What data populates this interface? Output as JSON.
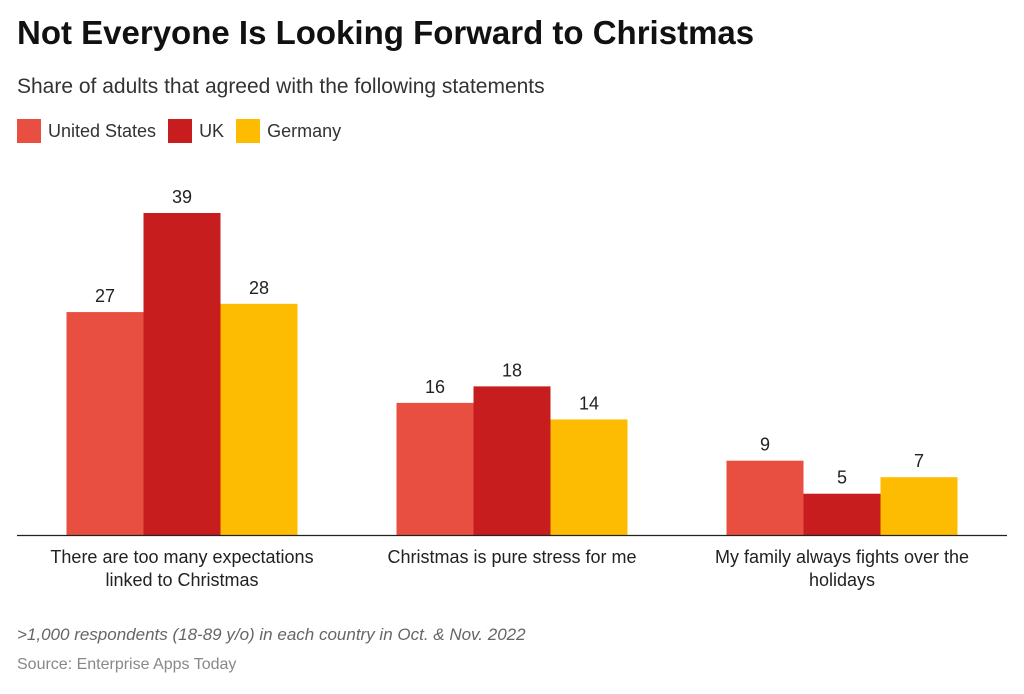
{
  "chart_data": {
    "type": "bar",
    "title": "Not Everyone Is Looking Forward to Christmas",
    "subtitle": "Share of adults that agreed with the following statements",
    "categories": [
      "There are too many expectations linked to Christmas",
      "Christmas is pure stress for me",
      "My family always fights over the holidays"
    ],
    "series": [
      {
        "name": "United States",
        "color": "#e84f41",
        "values": [
          27,
          16,
          9
        ]
      },
      {
        "name": "UK",
        "color": "#c71d1f",
        "values": [
          39,
          18,
          5
        ]
      },
      {
        "name": "Germany",
        "color": "#fdbc02",
        "values": [
          28,
          14,
          7
        ]
      }
    ],
    "ylim": [
      0,
      39
    ],
    "grid": false,
    "legend": "top-left",
    "note": ">1,000 respondents (18-89 y/o) in each country in Oct. & Nov. 2022",
    "source": "Source: Enterprise Apps Today"
  }
}
